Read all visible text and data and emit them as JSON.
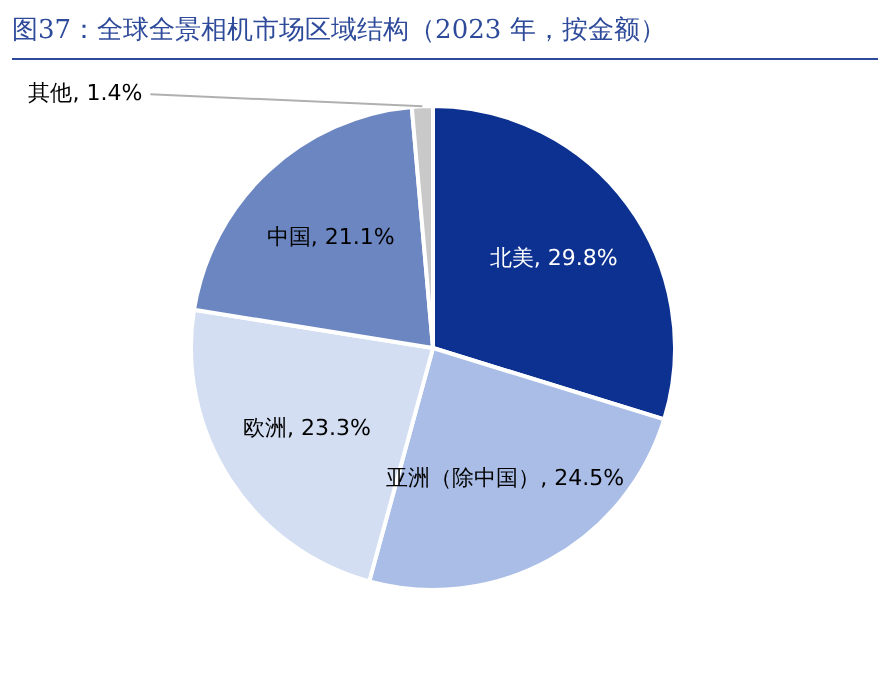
{
  "chart_data": {
    "type": "pie",
    "title": "图37：全球全景相机市场区域结构（2023 年，按金额）",
    "categories": [
      "北美",
      "亚洲（除中国）",
      "欧洲",
      "中国",
      "其他"
    ],
    "values": [
      29.8,
      24.5,
      23.3,
      21.1,
      1.4
    ],
    "colors": [
      "#0c3190",
      "#a9bde6",
      "#d3def2",
      "#6b86c0",
      "#c9c9c9"
    ],
    "value_labels": [
      ", 29.8%",
      ", 24.5%",
      ", 23.3%",
      ", 21.1%",
      ", 1.4%"
    ],
    "legend": false
  }
}
